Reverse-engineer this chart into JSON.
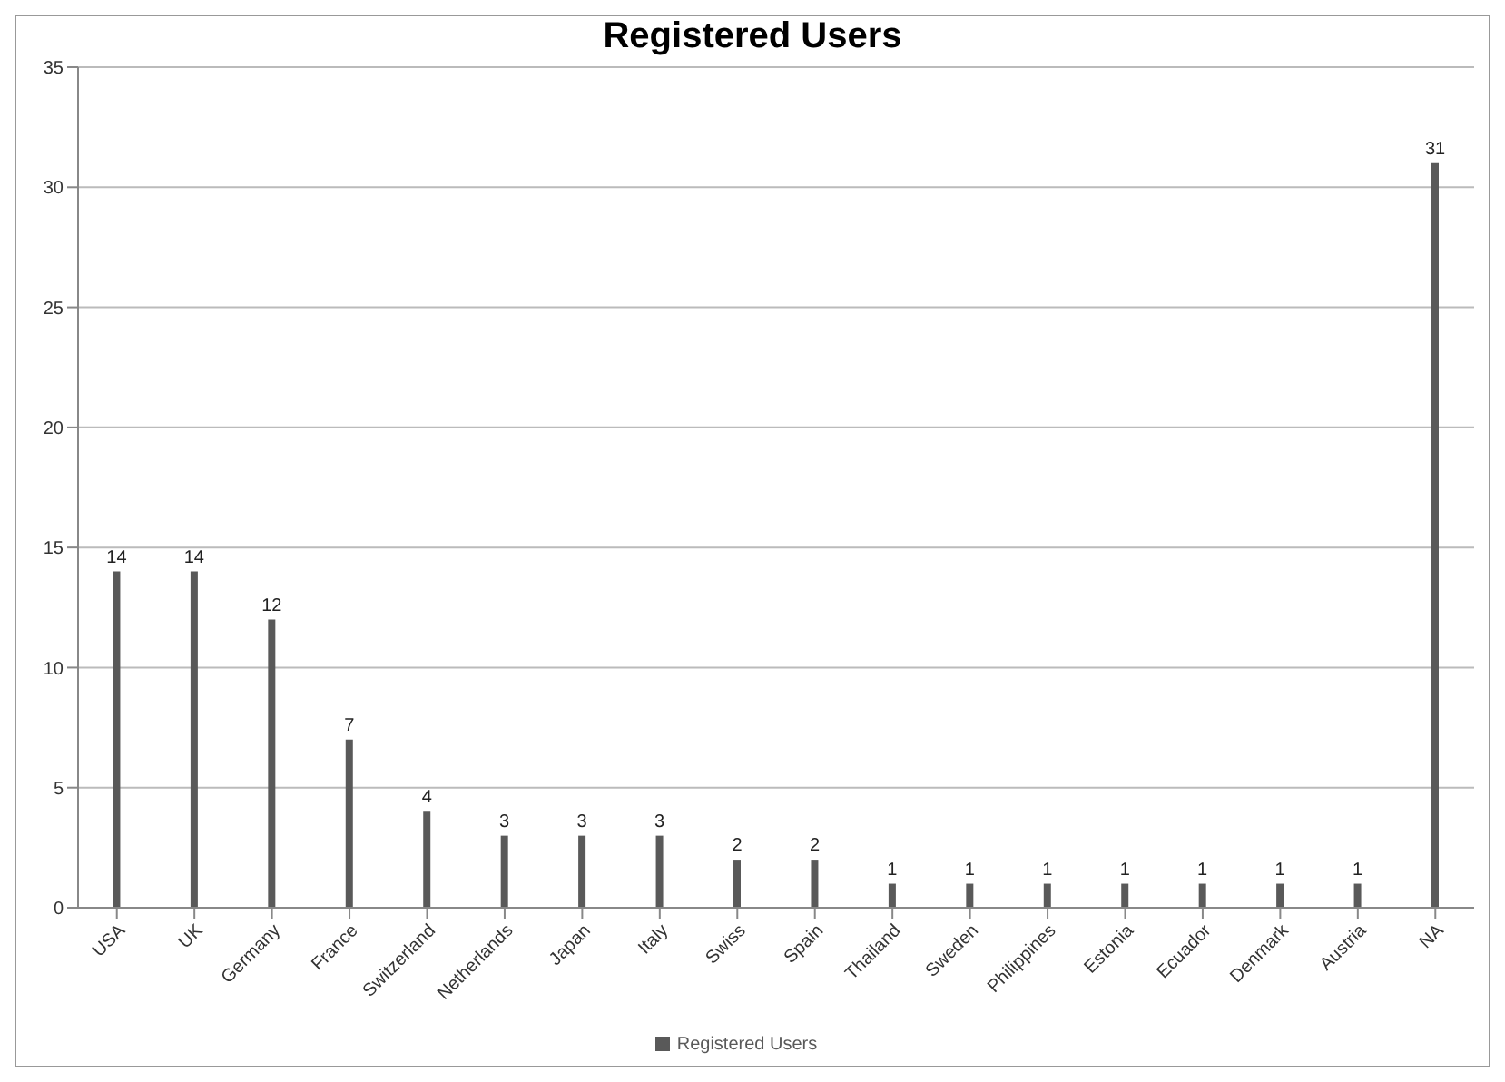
{
  "chart_data": {
    "type": "bar",
    "title": "Registered Users",
    "categories": [
      "USA",
      "UK",
      "Germany",
      "France",
      "Switzerland",
      "Netherlands",
      "Japan",
      "Italy",
      "Swiss",
      "Spain",
      "Thailand",
      "Sweden",
      "Philippines",
      "Estonia",
      "Ecuador",
      "Denmark",
      "Austria",
      "NA"
    ],
    "series": [
      {
        "name": "Registered Users",
        "color": "#595959",
        "values": [
          14,
          14,
          12,
          7,
          4,
          3,
          3,
          3,
          2,
          2,
          1,
          1,
          1,
          1,
          1,
          1,
          1,
          31
        ]
      }
    ],
    "ylim": [
      0,
      35
    ],
    "yticks": [
      0,
      5,
      10,
      15,
      20,
      25,
      30,
      35
    ],
    "grid": "y",
    "legend": "bottom",
    "data_labels": true
  }
}
